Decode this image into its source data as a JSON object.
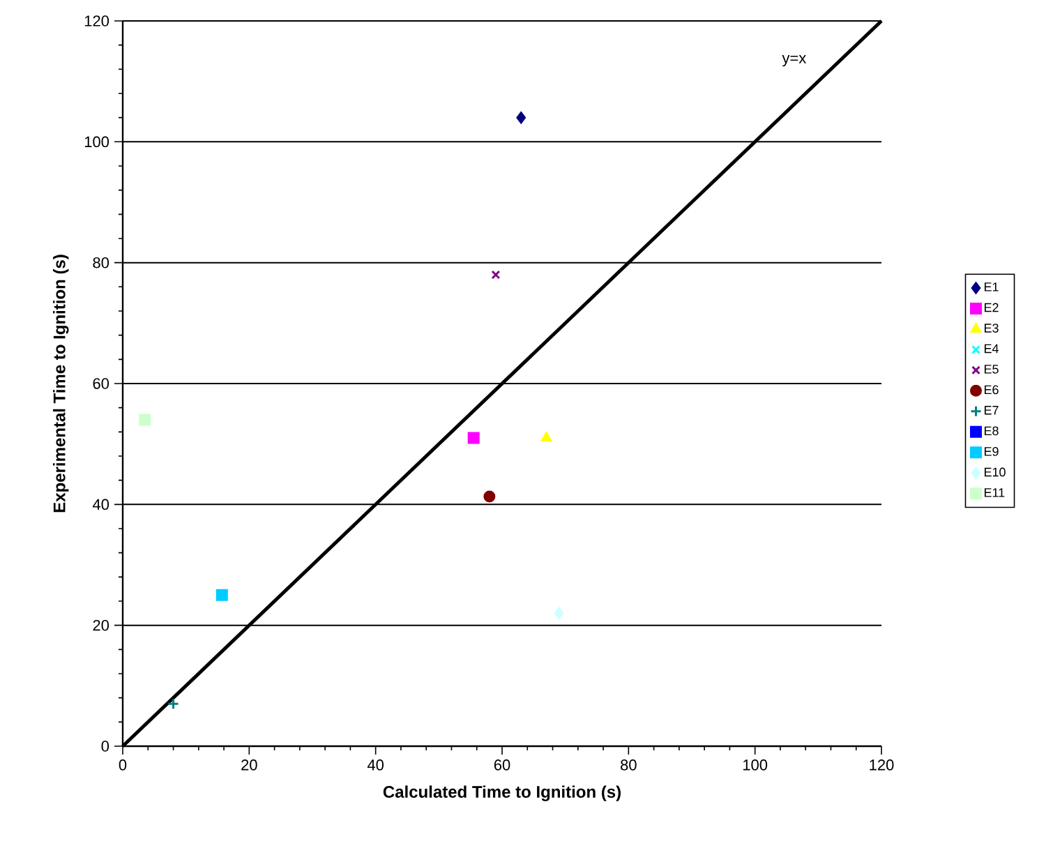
{
  "chart_data": {
    "type": "scatter",
    "xlabel": "Calculated Time to Ignition (s)",
    "ylabel": "Experimental Time to Ignition (s)",
    "xlim": [
      0,
      120
    ],
    "ylim": [
      0,
      120
    ],
    "xticks": [
      0,
      20,
      40,
      60,
      80,
      100,
      120
    ],
    "yticks": [
      0,
      20,
      40,
      60,
      80,
      100,
      120
    ],
    "grid": "y",
    "legend": "right",
    "annotations": [
      "y=x"
    ],
    "series": [
      {
        "name": "E1",
        "color": "#000080",
        "marker": "diamond",
        "x": [
          63
        ],
        "values": [
          104
        ]
      },
      {
        "name": "E2",
        "color": "#ff00ff",
        "marker": "square",
        "x": [
          55.5
        ],
        "values": [
          51
        ]
      },
      {
        "name": "E3",
        "color": "#ffff00",
        "marker": "triangle",
        "x": [
          67
        ],
        "values": [
          51
        ]
      },
      {
        "name": "E4",
        "color": "#00ffff",
        "marker": "cross",
        "x": [
          null
        ],
        "values": [
          null
        ]
      },
      {
        "name": "E5",
        "color": "#800080",
        "marker": "cross",
        "x": [
          59
        ],
        "values": [
          78
        ]
      },
      {
        "name": "E6",
        "color": "#800000",
        "marker": "circle",
        "x": [
          58
        ],
        "values": [
          41.3
        ]
      },
      {
        "name": "E7",
        "color": "#008080",
        "marker": "plus",
        "x": [
          8
        ],
        "values": [
          7
        ]
      },
      {
        "name": "E8",
        "color": "#0000ff",
        "marker": "square",
        "x": [
          null
        ],
        "values": [
          null
        ]
      },
      {
        "name": "E9",
        "color": "#00ccff",
        "marker": "square",
        "x": [
          15.7
        ],
        "values": [
          25
        ]
      },
      {
        "name": "E10",
        "color": "#ccffff",
        "marker": "diamond",
        "x": [
          69
        ],
        "values": [
          22
        ]
      },
      {
        "name": "E11",
        "color": "#ccffcc",
        "marker": "square",
        "x": [
          3.5
        ],
        "values": [
          54
        ]
      },
      {
        "type": "line",
        "color": "#000000",
        "x": [
          0,
          120
        ],
        "values": [
          0,
          120
        ]
      }
    ]
  }
}
